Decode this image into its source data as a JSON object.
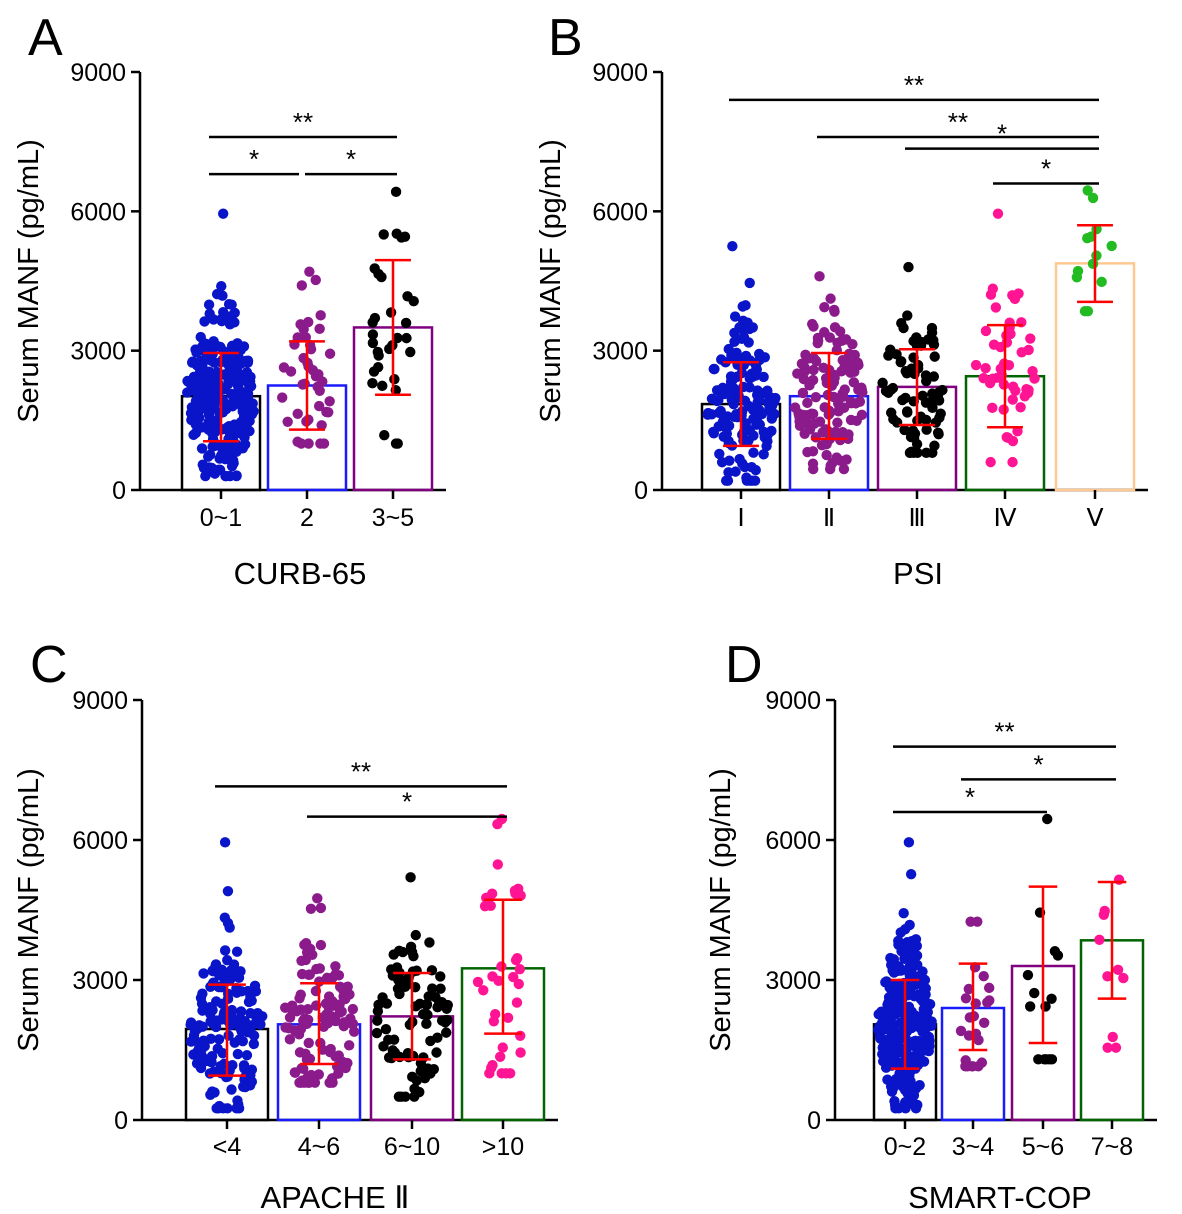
{
  "chart_data": [
    {
      "panel_label": "A",
      "type": "bar",
      "xlabel": "CURB-65",
      "ylabel": "Serum MANF (pg/mL)",
      "ylim": [
        0,
        9000
      ],
      "yticks": [
        "0",
        "3000",
        "6000",
        "9000"
      ],
      "categories": [
        "0~1",
        "2",
        "3~5"
      ],
      "values": [
        2020,
        2250,
        3500
      ],
      "sd_low": [
        1050,
        1300,
        2050
      ],
      "sd_high": [
        2950,
        3200,
        4950
      ],
      "bar_colors": [
        "#000000",
        "#1a1aff",
        "#800080"
      ],
      "point_colors": [
        "#0a14c8",
        "#8b1a8b",
        "#000000"
      ],
      "point_min": [
        300,
        1000,
        1000
      ],
      "point_max": [
        5950,
        4700,
        6420
      ],
      "point_counts": [
        260,
        42,
        32
      ],
      "significance": [
        {
          "from": 0,
          "to": 2,
          "label": "**",
          "y": 7600
        },
        {
          "from": 0,
          "to": 1,
          "label": "*",
          "y": 6800
        },
        {
          "from": 1,
          "to": 2,
          "label": "*",
          "y": 6800
        }
      ]
    },
    {
      "panel_label": "B",
      "type": "bar",
      "xlabel": "PSI",
      "ylabel": "Serum MANF (pg/mL)",
      "ylim": [
        0,
        9000
      ],
      "yticks": [
        "0",
        "3000",
        "6000",
        "9000"
      ],
      "categories": [
        "Ⅰ",
        "Ⅱ",
        "Ⅲ",
        "Ⅳ",
        "Ⅴ"
      ],
      "values": [
        1850,
        2020,
        2220,
        2450,
        4880
      ],
      "sd_low": [
        950,
        1100,
        1400,
        1350,
        4050
      ],
      "sd_high": [
        2750,
        2950,
        3030,
        3550,
        5700
      ],
      "bar_colors": [
        "#000000",
        "#1a1aff",
        "#800080",
        "#006400",
        "#ffc890"
      ],
      "point_colors": [
        "#0a14c8",
        "#8b1a8b",
        "#000000",
        "#ff1493",
        "#22bb22"
      ],
      "point_min": [
        200,
        450,
        800,
        600,
        3850
      ],
      "point_max": [
        5250,
        4600,
        4800,
        5950,
        6450
      ],
      "point_counts": [
        150,
        130,
        75,
        48,
        13
      ],
      "significance": [
        {
          "from": 0,
          "to": 4,
          "label": "**",
          "y": 8400
        },
        {
          "from": 1,
          "to": 4,
          "label": "**",
          "y": 7600
        },
        {
          "from": 2,
          "to": 4,
          "label": "*",
          "y": 7350
        },
        {
          "from": 3,
          "to": 4,
          "label": "*",
          "y": 6600
        }
      ]
    },
    {
      "panel_label": "C",
      "type": "bar",
      "xlabel": "APACHE Ⅱ",
      "ylabel": "Serum MANF (pg/mL)",
      "ylim": [
        0,
        9000
      ],
      "yticks": [
        "0",
        "3000",
        "6000",
        "9000"
      ],
      "categories": [
        "<4",
        "4~6",
        "6~10",
        ">10"
      ],
      "values": [
        1950,
        2050,
        2220,
        3250
      ],
      "sd_low": [
        950,
        1200,
        1300,
        1850
      ],
      "sd_high": [
        2900,
        2930,
        3150,
        4720
      ],
      "bar_colors": [
        "#000000",
        "#1a1aff",
        "#800080",
        "#006400"
      ],
      "point_colors": [
        "#0a14c8",
        "#8b1a8b",
        "#000000",
        "#ff1493"
      ],
      "point_min": [
        250,
        800,
        500,
        1000
      ],
      "point_max": [
        5950,
        4750,
        5200,
        6450
      ],
      "point_counts": [
        150,
        110,
        85,
        35
      ],
      "significance": [
        {
          "from": 0,
          "to": 3,
          "label": "**",
          "y": 7150
        },
        {
          "from": 1,
          "to": 3,
          "label": "*",
          "y": 6500
        }
      ]
    },
    {
      "panel_label": "D",
      "type": "bar",
      "xlabel": "SMART-COP",
      "ylabel": "Serum MANF (pg/mL)",
      "ylim": [
        0,
        9000
      ],
      "yticks": [
        "0",
        "3000",
        "6000",
        "9000"
      ],
      "categories": [
        "0~2",
        "3~4",
        "5~6",
        "7~8"
      ],
      "values": [
        2050,
        2400,
        3300,
        3850
      ],
      "sd_low": [
        1100,
        1500,
        1650,
        2600
      ],
      "sd_high": [
        3000,
        3350,
        5000,
        5100
      ],
      "bar_colors": [
        "#000000",
        "#1a1aff",
        "#800080",
        "#006400"
      ],
      "point_colors": [
        "#0a14c8",
        "#8b1a8b",
        "#000000",
        "#ff1493"
      ],
      "point_min": [
        250,
        1150,
        1300,
        1550
      ],
      "point_max": [
        5950,
        4250,
        6450,
        5150
      ],
      "point_counts": [
        280,
        24,
        14,
        10
      ],
      "significance": [
        {
          "from": 0,
          "to": 3,
          "label": "**",
          "y": 8000
        },
        {
          "from": 1,
          "to": 3,
          "label": "*",
          "y": 7300
        },
        {
          "from": 0,
          "to": 2,
          "label": "*",
          "y": 6600
        }
      ]
    }
  ],
  "colors": {
    "error_bar": "#ff0000",
    "axis": "#000000",
    "significance_line": "#000000"
  }
}
